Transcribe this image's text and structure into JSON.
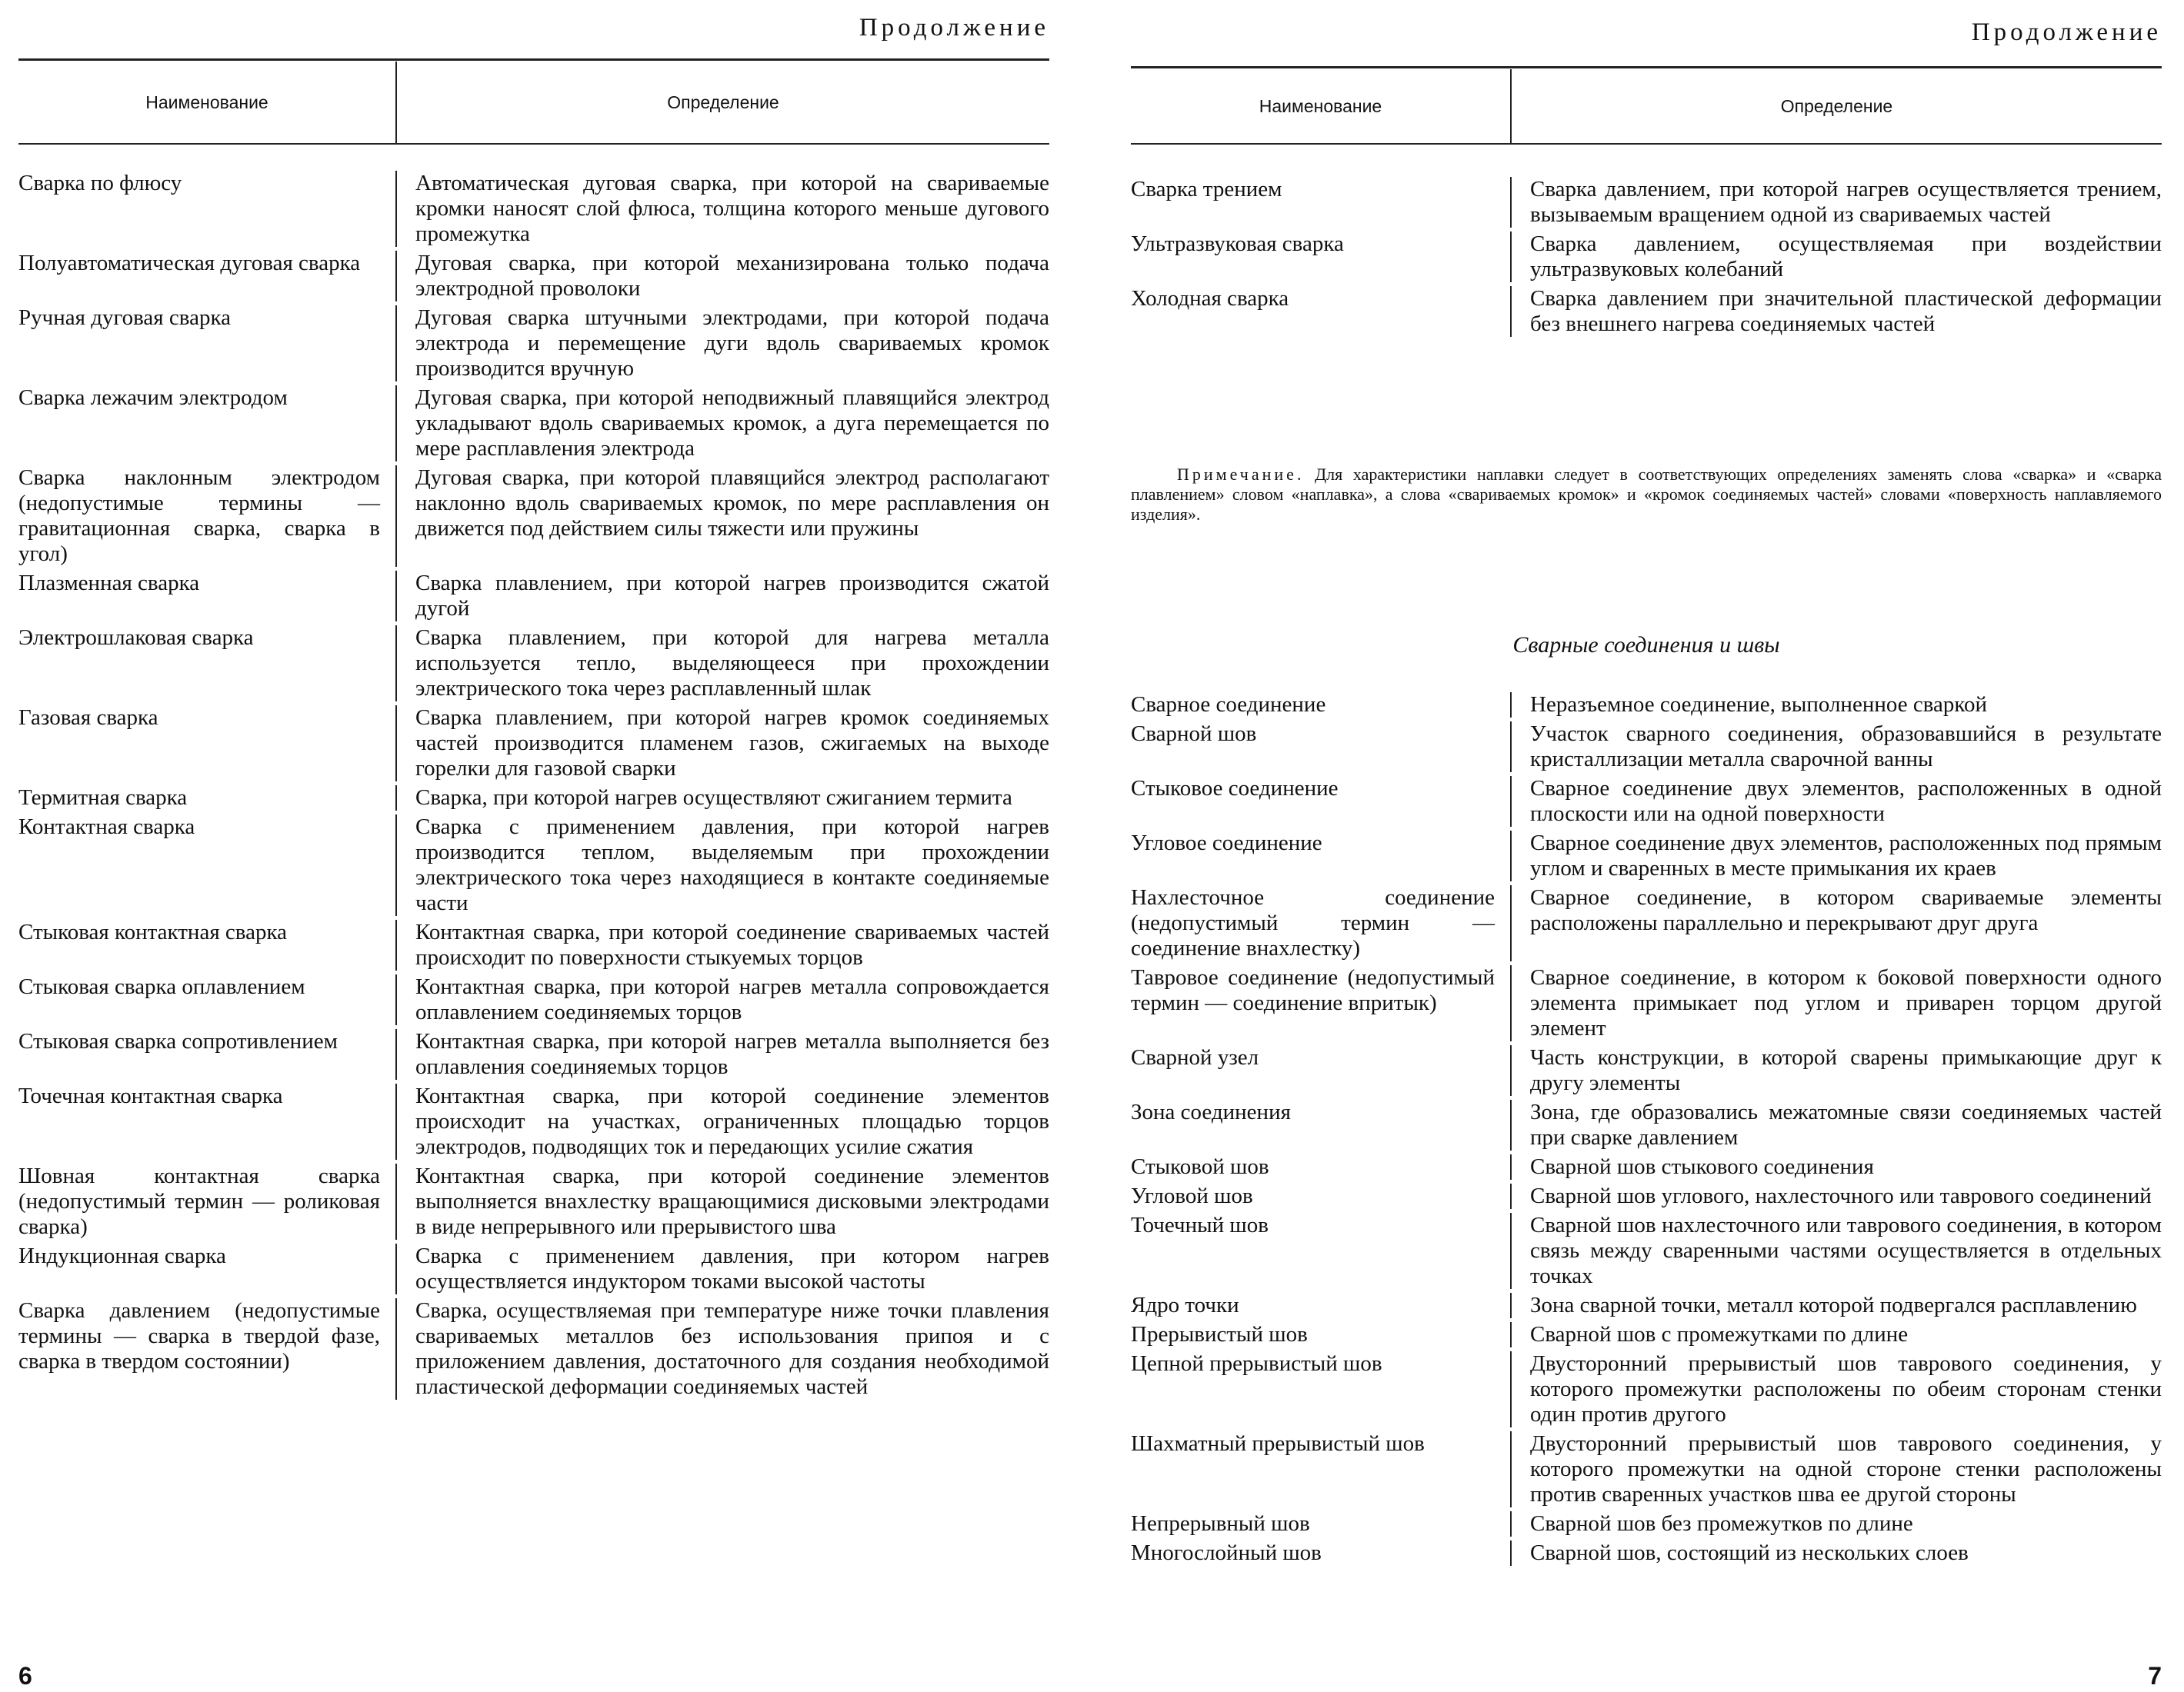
{
  "left_page": {
    "continued": "Продолжение",
    "table": {
      "headers": [
        "Наименование",
        "Определение"
      ],
      "rows": [
        [
          "Сварка по флюсу",
          "Автоматическая дуговая сварка, при которой на свариваемые кромки наносят слой флюса, толщина которого меньше дугового промежутка"
        ],
        [
          "Полуавтоматическая дуговая сварка",
          "Дуговая сварка, при которой механизирована только подача электродной проволоки"
        ],
        [
          "Ручная дуговая сварка",
          "Дуговая сварка штучными электродами, при которой подача электрода и перемещение дуги вдоль свариваемых кромок производится вручную"
        ],
        [
          "Сварка лежачим электродом",
          "Дуговая сварка, при которой неподвижный плавящийся электрод укладывают вдоль свариваемых кромок, а дуга перемещается по мере расплавления электрода"
        ],
        [
          "Сварка наклонным электродом (недопустимые термины — гравитационная сварка, сварка в угол)",
          "Дуговая сварка, при которой плавящийся электрод располагают наклонно вдоль свариваемых кромок, по мере расплавления он движется под действием силы тяжести или пружины"
        ],
        [
          "Плазменная сварка",
          "Сварка плавлением, при которой нагрев производится сжатой дугой"
        ],
        [
          "Электрошлаковая сварка",
          "Сварка плавлением, при которой для нагрева металла используется тепло, выделяющееся при прохождении электрического тока через расплавленный шлак"
        ],
        [
          "Газовая сварка",
          "Сварка плавлением, при которой нагрев кромок соединяемых частей производится пламенем газов, сжигаемых на выходе горелки для газовой сварки"
        ],
        [
          "Термитная сварка",
          "Сварка, при которой нагрев осуществляют сжиганием термита"
        ],
        [
          "Контактная сварка",
          "Сварка с применением давления, при которой нагрев производится теплом, выделяемым при прохождении электрического тока через находящиеся в контакте соединяемые части"
        ],
        [
          "Стыковая контактная сварка",
          "Контактная сварка, при которой соединение свариваемых частей происходит по поверхности стыкуемых торцов"
        ],
        [
          "Стыковая сварка оплавлением",
          "Контактная сварка, при которой нагрев металла сопровождается оплавлением соединяемых торцов"
        ],
        [
          "Стыковая сварка сопротивлением",
          "Контактная сварка, при которой нагрев металла выполняется без оплавления соединяемых торцов"
        ],
        [
          "Точечная контактная сварка",
          "Контактная сварка, при которой соединение элементов происходит на участках, ограниченных площадью торцов электродов, подводящих ток и передающих усилие сжатия"
        ],
        [
          "Шовная контактная сварка (недопустимый термин — роликовая сварка)",
          "Контактная сварка, при которой соединение элементов выполняется внахлестку вращающимися дисковыми электродами в виде непрерывного или прерывистого шва"
        ],
        [
          "Индукционная сварка",
          "Сварка с применением давления, при котором нагрев осуществляется индуктором токами высокой частоты"
        ],
        [
          "Сварка давлением (недопустимые термины — сварка в твердой фазе, сварка в твердом состоянии)",
          "Сварка, осуществляемая при температуре ниже точки плавления свариваемых металлов без использования припоя и с приложением давления, достаточного для создания необходимой пластической деформации соединяемых частей"
        ]
      ]
    },
    "page_number": "6"
  },
  "right_page": {
    "continued": "Продолжение",
    "table": {
      "headers": [
        "Наименование",
        "Определение"
      ],
      "rows": [
        [
          "Сварка трением",
          "Сварка давлением, при которой нагрев осуществляется трением, вызываемым вращением одной из свариваемых частей"
        ],
        [
          "Ультразвуковая сварка",
          "Сварка давлением, осуществляемая при воздействии ультразвуковых колебаний"
        ],
        [
          "Холодная сварка",
          "Сварка давлением при значительной пластической деформации без внешнего нагрева соединяемых частей"
        ]
      ]
    },
    "note": {
      "label": "Примечание.",
      "text": "Для характеристики наплавки следует в соответствующих определениях заменять слова «сварка» и «сварка плавлением» словом «наплавка», а слова «свариваемых кромок» и «кромок соединяемых частей» словами «поверхность наплавляемого изделия»."
    },
    "section_title": "Сварные соединения и швы",
    "table2": {
      "rows": [
        [
          "Сварное соединение",
          "Неразъемное соединение, выполненное сваркой"
        ],
        [
          "Сварной шов",
          "Участок сварного соединения, образовавшийся в результате кристаллизации металла сварочной ванны"
        ],
        [
          "Стыковое соединение",
          "Сварное соединение двух элементов, расположенных в одной плоскости или на одной поверхности"
        ],
        [
          "Угловое соединение",
          "Сварное соединение двух элементов, расположенных под прямым углом и сваренных в месте примыкания их краев"
        ],
        [
          "Нахлесточное соединение (недопустимый термин — соединение внахлестку)",
          "Сварное соединение, в котором свариваемые элементы расположены параллельно и перекрывают друг друга"
        ],
        [
          "Тавровое соединение (недопустимый термин — соединение впритык)",
          "Сварное соединение, в котором к боковой поверхности одного элемента примыкает под углом и приварен торцом другой элемент"
        ],
        [
          "Сварной узел",
          "Часть конструкции, в которой сварены примыкающие друг к другу элементы"
        ],
        [
          "Зона соединения",
          "Зона, где образовались межатомные связи соединяемых частей при сварке давлением"
        ],
        [
          "Стыковой шов",
          "Сварной шов стыкового соединения"
        ],
        [
          "Угловой шов",
          "Сварной шов углового, нахлесточного или таврового соединений"
        ],
        [
          "Точечный шов",
          "Сварной шов нахлесточного или таврового соединения, в котором связь между сваренными частями осуществляется в отдельных точках"
        ],
        [
          "Ядро точки",
          "Зона сварной точки, металл которой подвергался расплавлению"
        ],
        [
          "Прерывистый шов",
          "Сварной шов с промежутками по длине"
        ],
        [
          "Цепной прерывистый шов",
          "Двусторонний прерывистый шов таврового соединения, у которого промежутки расположены по обеим сторонам стенки один против другого"
        ],
        [
          "Шахматный прерывистый шов",
          "Двусторонний прерывистый шов таврового соединения, у которого промежутки на одной стороне стенки расположены против сваренных участков шва ее другой стороны"
        ],
        [
          "Непрерывный шов",
          "Сварной шов без промежутков по длине"
        ],
        [
          "Многослойный шов",
          "Сварной шов, состоящий из нескольких слоев"
        ]
      ]
    },
    "page_number": "7"
  }
}
